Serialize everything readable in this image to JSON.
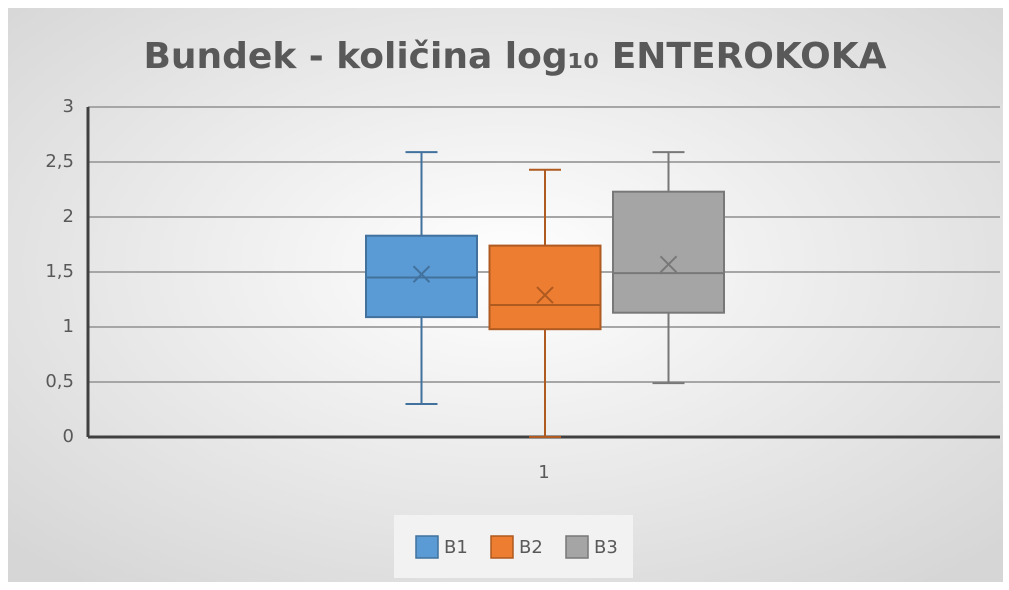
{
  "chart_data": {
    "type": "box",
    "title": "Bundek - količina log₁₀ ENTEROKOKA",
    "categories": [
      "1"
    ],
    "series": [
      {
        "name": "B1",
        "color": "#5b9bd5",
        "stroke": "#41719c",
        "min": 0.3,
        "q1": 1.09,
        "median": 1.45,
        "q3": 1.83,
        "max": 2.59,
        "mean": 1.48
      },
      {
        "name": "B2",
        "color": "#ed7d31",
        "stroke": "#ae5a21",
        "min": 0.0,
        "q1": 0.98,
        "median": 1.2,
        "q3": 1.74,
        "max": 2.43,
        "mean": 1.29
      },
      {
        "name": "B3",
        "color": "#a5a5a5",
        "stroke": "#787878",
        "min": 0.49,
        "q1": 1.13,
        "median": 1.49,
        "q3": 2.23,
        "max": 2.59,
        "mean": 1.57
      }
    ],
    "ylim": [
      0,
      3
    ],
    "yticks": [
      0,
      {
        "value": 0.5,
        "label": "0,5"
      },
      1,
      {
        "value": 1.5,
        "label": "1,5"
      },
      2,
      {
        "value": 2.5,
        "label": "2,5"
      },
      3
    ],
    "grid": true,
    "legend": "bottom"
  }
}
